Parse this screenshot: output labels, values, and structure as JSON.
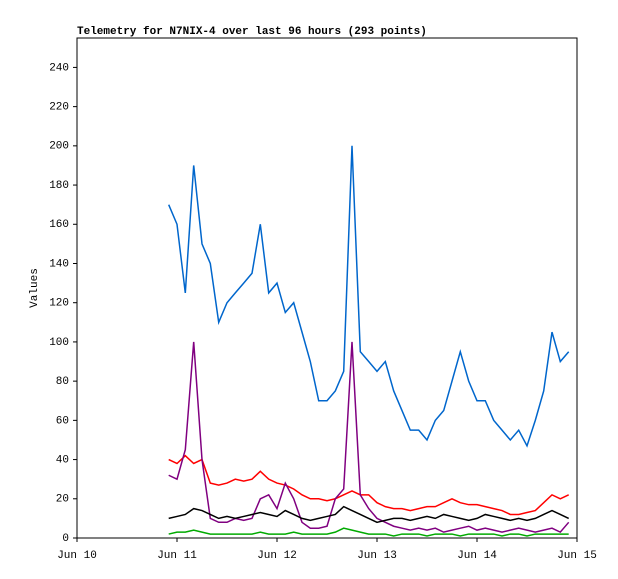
{
  "chart_data": {
    "type": "line",
    "title": "Telemetry for N7NIX-4 over last 96 hours (293 points)",
    "y_label": "Values",
    "x": [
      10.917,
      11,
      11.083,
      11.167,
      11.25,
      11.333,
      11.417,
      11.5,
      11.583,
      11.667,
      11.75,
      11.833,
      11.917,
      12,
      12.083,
      12.167,
      12.25,
      12.333,
      12.417,
      12.5,
      12.583,
      12.667,
      12.75,
      12.833,
      12.917,
      13,
      13.083,
      13.167,
      13.25,
      13.333,
      13.417,
      13.5,
      13.583,
      13.667,
      13.75,
      13.833,
      13.917,
      14,
      14.083,
      14.167,
      14.25,
      14.333,
      14.417,
      14.5,
      14.583,
      14.667,
      14.75,
      14.833,
      14.917
    ],
    "series": [
      {
        "color": "#0066cc",
        "values": [
          170,
          160,
          125,
          190,
          150,
          140,
          110,
          120,
          125,
          130,
          135,
          160,
          125,
          130,
          115,
          120,
          105,
          90,
          70,
          70,
          75,
          85,
          200,
          95,
          90,
          85,
          90,
          75,
          65,
          55,
          55,
          50,
          60,
          65,
          80,
          95,
          80,
          70,
          70,
          60,
          55,
          50,
          55,
          47,
          60,
          75,
          105,
          90,
          95
        ]
      },
      {
        "color": "#ff0000",
        "values": [
          40,
          38,
          42,
          38,
          40,
          28,
          27,
          28,
          30,
          29,
          30,
          34,
          30,
          28,
          27,
          25,
          22,
          20,
          20,
          19,
          20,
          22,
          24,
          22,
          22,
          18,
          16,
          15,
          15,
          14,
          15,
          16,
          16,
          18,
          20,
          18,
          17,
          17,
          16,
          15,
          14,
          12,
          12,
          13,
          14,
          18,
          22,
          20,
          22
        ]
      },
      {
        "color": "#800080",
        "values": [
          32,
          30,
          45,
          100,
          40,
          10,
          8,
          8,
          10,
          9,
          10,
          20,
          22,
          15,
          28,
          20,
          8,
          5,
          5,
          6,
          20,
          25,
          100,
          22,
          15,
          10,
          8,
          6,
          5,
          4,
          5,
          4,
          5,
          3,
          4,
          5,
          6,
          4,
          5,
          4,
          3,
          4,
          5,
          4,
          3,
          4,
          5,
          3,
          8
        ]
      },
      {
        "color": "#000000",
        "values": [
          10,
          11,
          12,
          15,
          14,
          12,
          10,
          11,
          10,
          11,
          12,
          13,
          12,
          11,
          14,
          12,
          10,
          9,
          10,
          11,
          12,
          16,
          14,
          12,
          10,
          8,
          9,
          10,
          10,
          9,
          10,
          11,
          10,
          12,
          11,
          10,
          9,
          10,
          12,
          11,
          10,
          9,
          10,
          9,
          10,
          12,
          14,
          12,
          10
        ]
      },
      {
        "color": "#00aa00",
        "values": [
          2,
          3,
          3,
          4,
          3,
          2,
          2,
          2,
          2,
          2,
          2,
          3,
          2,
          2,
          2,
          3,
          2,
          2,
          2,
          2,
          3,
          5,
          4,
          3,
          2,
          2,
          2,
          1,
          2,
          2,
          2,
          1,
          2,
          2,
          2,
          1,
          2,
          2,
          2,
          2,
          1,
          2,
          2,
          1,
          2,
          2,
          2,
          2,
          2
        ]
      }
    ],
    "xlim": [
      10,
      15
    ],
    "xticks": [
      {
        "value": 10,
        "label": "Jun 10"
      },
      {
        "value": 11,
        "label": "Jun 11"
      },
      {
        "value": 12,
        "label": "Jun 12"
      },
      {
        "value": 13,
        "label": "Jun 13"
      },
      {
        "value": 14,
        "label": "Jun 14"
      },
      {
        "value": 15,
        "label": "Jun 15"
      }
    ],
    "ylim": [
      0,
      255
    ],
    "yticks": [
      0,
      20,
      40,
      60,
      80,
      100,
      120,
      140,
      160,
      180,
      200,
      220,
      240
    ]
  }
}
